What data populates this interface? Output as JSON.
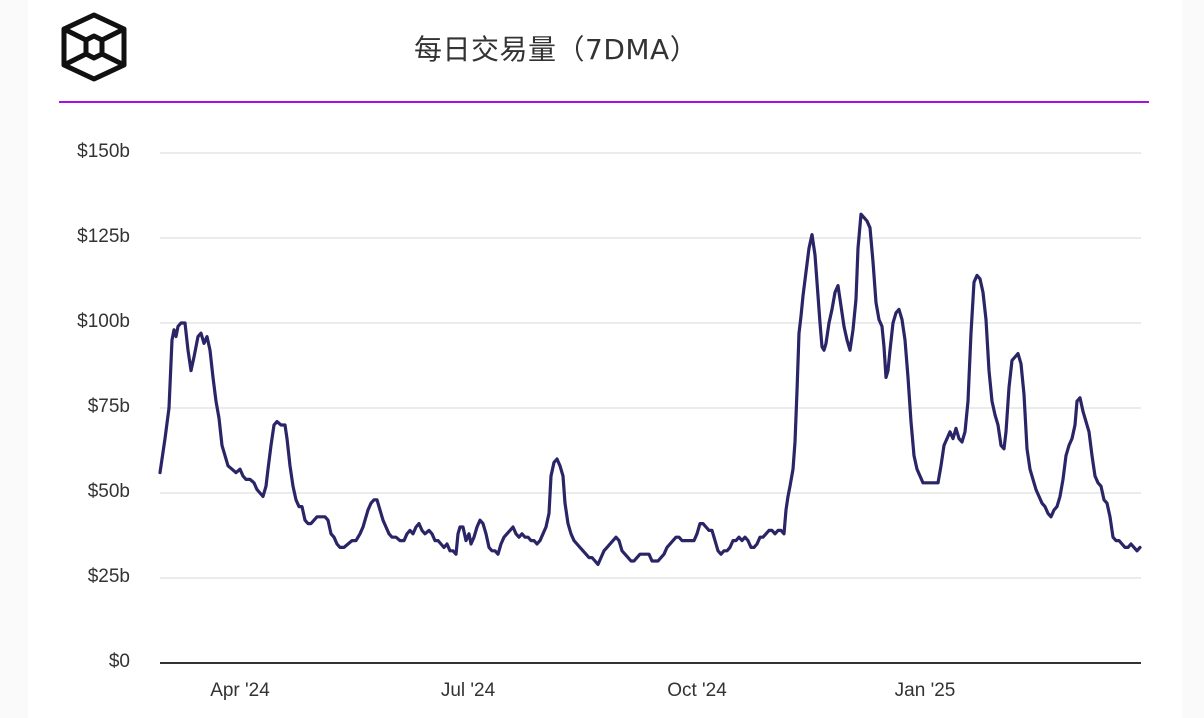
{
  "header": {
    "logo_icon": "hexagon-cube-logo-icon",
    "title": "每日交易量（7DMA）",
    "accent_color": "#a50fe8"
  },
  "chart_data": {
    "type": "line",
    "title": "每日交易量（7DMA）",
    "xlabel": "",
    "ylabel": "",
    "ylim": [
      0,
      150
    ],
    "y_unit": "billion USD",
    "yticks": [
      "$0",
      "$25b",
      "$50b",
      "$75b",
      "$100b",
      "$125b",
      "$150b"
    ],
    "ytick_values": [
      0,
      25,
      50,
      75,
      100,
      125,
      150
    ],
    "xticks": [
      "Apr '24",
      "Jul '24",
      "Oct '24",
      "Jan '25"
    ],
    "grid": true,
    "legend": null,
    "line_color": "#2a2566",
    "series": [
      {
        "name": "Daily volume (7DMA)",
        "x_start": "2024-03-01",
        "x_end": "2025-03-13",
        "points": [
          [
            160,
            56
          ],
          [
            165,
            66
          ],
          [
            169,
            75
          ],
          [
            172,
            95
          ],
          [
            174,
            98
          ],
          [
            176,
            96
          ],
          [
            178,
            99
          ],
          [
            181,
            100
          ],
          [
            185,
            100
          ],
          [
            188,
            92
          ],
          [
            191,
            86
          ],
          [
            194,
            90
          ],
          [
            198,
            96
          ],
          [
            201,
            97
          ],
          [
            204,
            94
          ],
          [
            207,
            96
          ],
          [
            210,
            92
          ],
          [
            213,
            84
          ],
          [
            216,
            77
          ],
          [
            219,
            72
          ],
          [
            222,
            64
          ],
          [
            225,
            61
          ],
          [
            228,
            58
          ],
          [
            232,
            57
          ],
          [
            236,
            56
          ],
          [
            240,
            57
          ],
          [
            243,
            55
          ],
          [
            246,
            54
          ],
          [
            250,
            54
          ],
          [
            254,
            53
          ],
          [
            257,
            51
          ],
          [
            260,
            50
          ],
          [
            263,
            49
          ],
          [
            266,
            52
          ],
          [
            268,
            57
          ],
          [
            271,
            64
          ],
          [
            274,
            70
          ],
          [
            277,
            71
          ],
          [
            281,
            70
          ],
          [
            285,
            70
          ],
          [
            287,
            66
          ],
          [
            290,
            58
          ],
          [
            293,
            52
          ],
          [
            296,
            48
          ],
          [
            299,
            46
          ],
          [
            302,
            46
          ],
          [
            305,
            42
          ],
          [
            308,
            41
          ],
          [
            311,
            41
          ],
          [
            314,
            42
          ],
          [
            317,
            43
          ],
          [
            321,
            43
          ],
          [
            325,
            43
          ],
          [
            328,
            42
          ],
          [
            331,
            38
          ],
          [
            334,
            37
          ],
          [
            337,
            35
          ],
          [
            340,
            34
          ],
          [
            344,
            34
          ],
          [
            348,
            35
          ],
          [
            352,
            36
          ],
          [
            356,
            36
          ],
          [
            360,
            38
          ],
          [
            363,
            40
          ],
          [
            366,
            43
          ],
          [
            368,
            45
          ],
          [
            371,
            47
          ],
          [
            374,
            48
          ],
          [
            377,
            48
          ],
          [
            380,
            45
          ],
          [
            383,
            42
          ],
          [
            386,
            40
          ],
          [
            389,
            38
          ],
          [
            392,
            37
          ],
          [
            396,
            37
          ],
          [
            400,
            36
          ],
          [
            404,
            36
          ],
          [
            407,
            38
          ],
          [
            410,
            39
          ],
          [
            413,
            38
          ],
          [
            416,
            40
          ],
          [
            419,
            41
          ],
          [
            422,
            39
          ],
          [
            425,
            38
          ],
          [
            429,
            39
          ],
          [
            432,
            38
          ],
          [
            435,
            36
          ],
          [
            438,
            36
          ],
          [
            441,
            35
          ],
          [
            444,
            34
          ],
          [
            447,
            35
          ],
          [
            450,
            33
          ],
          [
            453,
            33
          ],
          [
            456,
            32
          ],
          [
            458,
            38
          ],
          [
            460,
            40
          ],
          [
            463,
            40
          ],
          [
            466,
            36
          ],
          [
            469,
            38
          ],
          [
            471,
            35
          ],
          [
            474,
            37
          ],
          [
            477,
            40
          ],
          [
            480,
            42
          ],
          [
            483,
            41
          ],
          [
            486,
            38
          ],
          [
            489,
            34
          ],
          [
            492,
            33
          ],
          [
            495,
            33
          ],
          [
            498,
            32
          ],
          [
            501,
            35
          ],
          [
            504,
            37
          ],
          [
            507,
            38
          ],
          [
            510,
            39
          ],
          [
            513,
            40
          ],
          [
            516,
            38
          ],
          [
            519,
            37
          ],
          [
            522,
            38
          ],
          [
            525,
            37
          ],
          [
            528,
            37
          ],
          [
            531,
            36
          ],
          [
            534,
            36
          ],
          [
            537,
            35
          ],
          [
            540,
            36
          ],
          [
            543,
            38
          ],
          [
            546,
            40
          ],
          [
            549,
            44
          ],
          [
            551,
            55
          ],
          [
            554,
            59
          ],
          [
            557,
            60
          ],
          [
            560,
            58
          ],
          [
            563,
            55
          ],
          [
            565,
            47
          ],
          [
            568,
            41
          ],
          [
            571,
            38
          ],
          [
            574,
            36
          ],
          [
            577,
            35
          ],
          [
            580,
            34
          ],
          [
            583,
            33
          ],
          [
            586,
            32
          ],
          [
            589,
            31
          ],
          [
            592,
            31
          ],
          [
            595,
            30
          ],
          [
            598,
            29
          ],
          [
            601,
            31
          ],
          [
            604,
            33
          ],
          [
            607,
            34
          ],
          [
            610,
            35
          ],
          [
            613,
            36
          ],
          [
            616,
            37
          ],
          [
            619,
            36
          ],
          [
            622,
            33
          ],
          [
            625,
            32
          ],
          [
            628,
            31
          ],
          [
            631,
            30
          ],
          [
            634,
            30
          ],
          [
            637,
            31
          ],
          [
            640,
            32
          ],
          [
            643,
            32
          ],
          [
            646,
            32
          ],
          [
            649,
            32
          ],
          [
            652,
            30
          ],
          [
            655,
            30
          ],
          [
            658,
            30
          ],
          [
            661,
            31
          ],
          [
            664,
            32
          ],
          [
            667,
            34
          ],
          [
            670,
            35
          ],
          [
            673,
            36
          ],
          [
            676,
            37
          ],
          [
            679,
            37
          ],
          [
            682,
            36
          ],
          [
            685,
            36
          ],
          [
            688,
            36
          ],
          [
            691,
            36
          ],
          [
            694,
            36
          ],
          [
            697,
            38
          ],
          [
            700,
            41
          ],
          [
            703,
            41
          ],
          [
            706,
            40
          ],
          [
            709,
            39
          ],
          [
            712,
            39
          ],
          [
            715,
            36
          ],
          [
            718,
            33
          ],
          [
            721,
            32
          ],
          [
            724,
            33
          ],
          [
            727,
            33
          ],
          [
            730,
            34
          ],
          [
            733,
            36
          ],
          [
            736,
            36
          ],
          [
            739,
            37
          ],
          [
            742,
            36
          ],
          [
            745,
            37
          ],
          [
            748,
            36
          ],
          [
            751,
            34
          ],
          [
            754,
            34
          ],
          [
            757,
            35
          ],
          [
            760,
            37
          ],
          [
            763,
            37
          ],
          [
            766,
            38
          ],
          [
            769,
            39
          ],
          [
            772,
            39
          ],
          [
            775,
            38
          ],
          [
            778,
            39
          ],
          [
            781,
            39
          ],
          [
            784,
            38
          ],
          [
            786,
            45
          ],
          [
            788,
            49
          ],
          [
            790,
            52
          ],
          [
            793,
            57
          ],
          [
            795,
            65
          ],
          [
            797,
            80
          ],
          [
            799,
            97
          ],
          [
            801,
            102
          ],
          [
            803,
            108
          ],
          [
            806,
            115
          ],
          [
            809,
            122
          ],
          [
            812,
            126
          ],
          [
            815,
            120
          ],
          [
            818,
            108
          ],
          [
            820,
            100
          ],
          [
            822,
            93
          ],
          [
            824,
            92
          ],
          [
            826,
            94
          ],
          [
            829,
            100
          ],
          [
            832,
            104
          ],
          [
            835,
            109
          ],
          [
            838,
            111
          ],
          [
            841,
            105
          ],
          [
            844,
            99
          ],
          [
            847,
            95
          ],
          [
            850,
            92
          ],
          [
            853,
            98
          ],
          [
            856,
            107
          ],
          [
            858,
            122
          ],
          [
            861,
            132
          ],
          [
            864,
            131
          ],
          [
            867,
            130
          ],
          [
            870,
            128
          ],
          [
            873,
            118
          ],
          [
            876,
            106
          ],
          [
            879,
            101
          ],
          [
            882,
            99
          ],
          [
            884,
            93
          ],
          [
            886,
            84
          ],
          [
            888,
            86
          ],
          [
            890,
            92
          ],
          [
            893,
            100
          ],
          [
            896,
            103
          ],
          [
            899,
            104
          ],
          [
            902,
            101
          ],
          [
            905,
            95
          ],
          [
            908,
            84
          ],
          [
            911,
            71
          ],
          [
            914,
            61
          ],
          [
            917,
            57
          ],
          [
            920,
            55
          ],
          [
            923,
            53
          ],
          [
            926,
            53
          ],
          [
            929,
            53
          ],
          [
            932,
            53
          ],
          [
            935,
            53
          ],
          [
            938,
            53
          ],
          [
            941,
            58
          ],
          [
            944,
            64
          ],
          [
            947,
            66
          ],
          [
            950,
            68
          ],
          [
            953,
            66
          ],
          [
            956,
            69
          ],
          [
            959,
            66
          ],
          [
            962,
            65
          ],
          [
            965,
            68
          ],
          [
            968,
            77
          ],
          [
            971,
            97
          ],
          [
            974,
            112
          ],
          [
            977,
            114
          ],
          [
            980,
            113
          ],
          [
            983,
            109
          ],
          [
            986,
            101
          ],
          [
            989,
            86
          ],
          [
            992,
            77
          ],
          [
            995,
            73
          ],
          [
            998,
            70
          ],
          [
            1001,
            64
          ],
          [
            1004,
            63
          ],
          [
            1006,
            68
          ],
          [
            1009,
            81
          ],
          [
            1012,
            89
          ],
          [
            1015,
            90
          ],
          [
            1018,
            91
          ],
          [
            1021,
            88
          ],
          [
            1024,
            79
          ],
          [
            1027,
            63
          ],
          [
            1030,
            57
          ],
          [
            1033,
            54
          ],
          [
            1036,
            51
          ],
          [
            1039,
            49
          ],
          [
            1042,
            47
          ],
          [
            1045,
            46
          ],
          [
            1048,
            44
          ],
          [
            1051,
            43
          ],
          [
            1054,
            45
          ],
          [
            1057,
            46
          ],
          [
            1060,
            49
          ],
          [
            1063,
            54
          ],
          [
            1066,
            61
          ],
          [
            1069,
            64
          ],
          [
            1072,
            66
          ],
          [
            1075,
            70
          ],
          [
            1077,
            77
          ],
          [
            1080,
            78
          ],
          [
            1083,
            74
          ],
          [
            1086,
            71
          ],
          [
            1089,
            68
          ],
          [
            1092,
            61
          ],
          [
            1095,
            55
          ],
          [
            1098,
            53
          ],
          [
            1101,
            52
          ],
          [
            1104,
            48
          ],
          [
            1107,
            47
          ],
          [
            1110,
            43
          ],
          [
            1113,
            37
          ],
          [
            1116,
            36
          ],
          [
            1119,
            36
          ],
          [
            1122,
            35
          ],
          [
            1125,
            34
          ],
          [
            1128,
            34
          ],
          [
            1131,
            35
          ],
          [
            1134,
            34
          ],
          [
            1137,
            33
          ],
          [
            1140,
            34
          ]
        ]
      }
    ]
  }
}
